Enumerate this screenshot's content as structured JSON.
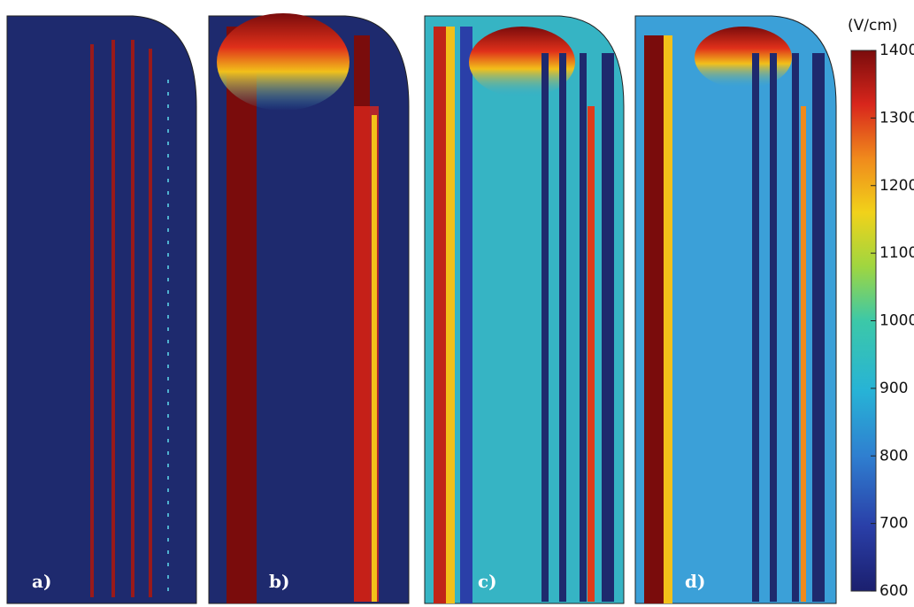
{
  "panels": [
    {
      "label": "a)"
    },
    {
      "label": "b)"
    },
    {
      "label": "c)"
    },
    {
      "label": "d)"
    }
  ],
  "colorbar": {
    "unit": "(V/cm)",
    "lim": [
      600,
      1400
    ],
    "ticks": [
      600,
      700,
      800,
      900,
      1000,
      1100,
      1200,
      1300,
      1400
    ]
  }
}
